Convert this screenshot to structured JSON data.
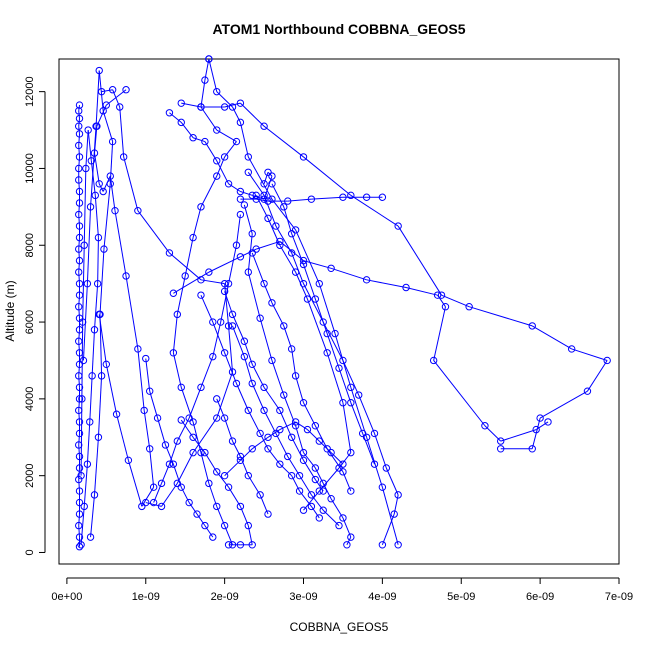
{
  "chart_data": {
    "type": "line",
    "title": "ATOM1 Northbound COBBNA_GEOS5",
    "xlabel": "COBBNA_GEOS5",
    "ylabel": "Altitude (m)",
    "xlim": [
      -1e-10,
      7e-09
    ],
    "ylim": [
      -300,
      12850
    ],
    "x_ticks": [
      0,
      1e-09,
      2e-09,
      3e-09,
      4e-09,
      5e-09,
      6e-09,
      7e-09
    ],
    "x_tick_labels": [
      "0e+00",
      "1e-09",
      "2e-09",
      "3e-09",
      "4e-09",
      "5e-09",
      "6e-09",
      "7e-09"
    ],
    "y_ticks": [
      0,
      2000,
      4000,
      6000,
      8000,
      10000,
      12000
    ],
    "y_tick_labels": [
      "0",
      "2000",
      "4000",
      "6000",
      "8000",
      "10000",
      "12000"
    ],
    "grid": false,
    "legend": "none",
    "marker": "open-circle",
    "color": "#0000ff",
    "series": [
      {
        "x": [
          1.6e-10,
          1.6e-10,
          1.5e-10,
          1.6e-10,
          1.6e-10,
          1.6e-10,
          1.5e-10,
          1.6e-10,
          1.6e-10,
          1.5e-10,
          1.6e-10,
          1.6e-10,
          1.5e-10,
          1.6e-10,
          1.6e-10,
          1.5e-10,
          1.6e-10,
          1.6e-10,
          1.5e-10,
          1.6e-10,
          1.6e-10,
          1.5e-10,
          1.6e-10,
          1.6e-10,
          1.5e-10,
          1.6e-10,
          1.5e-10,
          1.6e-10,
          1.6e-10,
          1.5e-10,
          1.6e-10,
          1.6e-10,
          1.5e-10,
          1.5e-10,
          1.6e-10,
          1.5e-10,
          1.6e-10,
          1.5e-10,
          1.6e-10,
          1.5e-10,
          1.6e-10
        ],
        "y": [
          150,
          400,
          700,
          1000,
          1300,
          1600,
          1900,
          2200,
          2500,
          2800,
          3100,
          3400,
          3700,
          4000,
          4300,
          4600,
          4900,
          5200,
          5500,
          5800,
          6100,
          6400,
          6700,
          7000,
          7300,
          7600,
          7900,
          8200,
          8500,
          8800,
          9100,
          9400,
          9700,
          10000,
          10300,
          10600,
          10900,
          11100,
          11300,
          11500,
          11650
        ]
      },
      {
        "x": [
          1.8e-10,
          2.2e-10,
          2.6e-10,
          2.9e-10,
          3.2e-10,
          3.5e-10,
          3.9e-10,
          4e-10,
          3.6e-10,
          3.1e-10,
          2.7e-10,
          2.4e-10,
          2.2e-10,
          2e-10,
          1.9e-10,
          1.8e-10
        ],
        "y": [
          200,
          1200,
          2300,
          3400,
          4600,
          5800,
          7000,
          8200,
          9300,
          10200,
          11000,
          10000,
          8000,
          6000,
          4000,
          2000
        ]
      },
      {
        "x": [
          3e-10,
          3.5e-10,
          4e-10,
          4.4e-10,
          4.2e-10,
          4.7e-10,
          5.5e-10,
          5.8e-10,
          4.6e-10,
          4.1e-10,
          3.7e-10,
          3e-10,
          2.6e-10,
          2.1e-10
        ],
        "y": [
          400,
          1500,
          3000,
          4600,
          6200,
          7900,
          9600,
          10700,
          11500,
          12550,
          11100,
          9000,
          7000,
          5000
        ]
      },
      {
        "x": [
          7.5e-10,
          5e-10,
          3.8e-10,
          3.5e-10,
          4.1e-10,
          4.6e-10,
          5.5e-10,
          6.1e-10,
          7.5e-10,
          9e-10,
          9.8e-10,
          1.05e-09,
          1.1e-09,
          9.5e-10,
          7.8e-10,
          6.3e-10,
          5e-10,
          4.1e-10
        ],
        "y": [
          12050,
          11650,
          11100,
          10400,
          9600,
          9400,
          9800,
          8900,
          7200,
          5300,
          3700,
          2700,
          1700,
          1200,
          2400,
          3600,
          4900,
          6200
        ]
      },
      {
        "x": [
          4.4e-10,
          5.8e-10,
          6.7e-10,
          7.2e-10,
          9e-10,
          1.3e-09,
          1.7e-09,
          2e-09,
          2.05e-09,
          2.1e-09,
          1.9e-09,
          1.6e-09,
          1.4e-09,
          1.2e-09,
          1e-09
        ],
        "y": [
          12000,
          12050,
          11600,
          10300,
          8900,
          7800,
          7100,
          7000,
          5900,
          4700,
          3500,
          2600,
          1800,
          1200,
          1300
        ]
      },
      {
        "x": [
          1.8e-09,
          1.9e-09,
          2.1e-09,
          2.2e-09,
          2.3e-09,
          2.6e-09,
          2.9e-09,
          3.2e-09,
          3.4e-09,
          3.6e-09,
          3.8e-09,
          4e-09,
          4.2e-09
        ],
        "y": [
          12850,
          12000,
          11600,
          11200,
          10300,
          9200,
          8400,
          7000,
          5700,
          4300,
          3000,
          1700,
          200
        ]
      },
      {
        "x": [
          1.8e-09,
          1.75e-09,
          1.7e-09,
          1.9e-09,
          2.15e-09,
          2e-09,
          1.9e-09,
          1.7e-09,
          1.6e-09,
          1.5e-09,
          1.4e-09,
          1.35e-09,
          1.45e-09,
          1.6e-09,
          1.7e-09,
          1.8e-09,
          1.9e-09,
          2e-09,
          2.1e-09
        ],
        "y": [
          12850,
          12300,
          11600,
          11000,
          10700,
          10300,
          9800,
          9000,
          8200,
          7200,
          6200,
          5200,
          4300,
          3400,
          2600,
          1800,
          1200,
          700,
          200
        ]
      },
      {
        "x": [
          1.3e-09,
          1.45e-09,
          1.6e-09,
          1.75e-09,
          1.9e-09,
          2.05e-09,
          2.2e-09,
          2.35e-09,
          2.5e-09,
          2.6e-09,
          2.55e-09,
          2.5e-09
        ],
        "y": [
          11450,
          11200,
          10800,
          10700,
          10200,
          9600,
          9400,
          9300,
          9200,
          9800,
          9900,
          9600
        ]
      },
      {
        "x": [
          1.45e-09,
          1.7e-09,
          2e-09,
          2.2e-09,
          2.5e-09,
          3e-09,
          3.6e-09,
          4.2e-09,
          4.75e-09,
          5.1e-09,
          5.9e-09,
          6.4e-09,
          6.85e-09,
          6.6e-09,
          6e-09,
          5.9e-09,
          5.5e-09
        ],
        "y": [
          11700,
          11600,
          11600,
          11700,
          11100,
          10300,
          9300,
          8500,
          6700,
          6400,
          5900,
          5300,
          5000,
          4200,
          3500,
          2700,
          2700
        ]
      },
      {
        "x": [
          1.35e-09,
          1.8e-09,
          2.2e-09,
          2.4e-09,
          2.7e-09,
          3e-09,
          3.35e-09,
          3.8e-09,
          4.3e-09,
          4.7e-09,
          4.8e-09,
          4.65e-09,
          5.3e-09,
          5.5e-09,
          5.95e-09,
          6.1e-09
        ],
        "y": [
          6750,
          7300,
          7700,
          7900,
          8100,
          7600,
          7400,
          7100,
          6900,
          6700,
          6400,
          5000,
          3300,
          2900,
          3200,
          3400
        ]
      },
      {
        "x": [
          2.2e-09,
          2.4e-09,
          2.55e-09,
          2.8e-09,
          3.1e-09,
          3.5e-09,
          3.8e-09,
          4e-09
        ],
        "y": [
          9200,
          9200,
          9150,
          9150,
          9200,
          9250,
          9250,
          9250
        ]
      },
      {
        "x": [
          2.3e-09,
          2.5e-09,
          2.65e-09,
          2.85e-09,
          3e-09,
          3.25e-09,
          3.5e-09,
          3.7e-09,
          3.9e-09,
          4.05e-09,
          4.2e-09,
          4.15e-09,
          4e-09
        ],
        "y": [
          9900,
          9300,
          8500,
          7800,
          7000,
          6000,
          5000,
          4100,
          3100,
          2200,
          1500,
          1000,
          200
        ]
      },
      {
        "x": [
          2.4e-09,
          2.55e-09,
          2.7e-09,
          2.9e-09,
          3.05e-09,
          3.3e-09,
          3.5e-09,
          3.6e-09,
          3.45e-09,
          3.2e-09,
          3e-09
        ],
        "y": [
          9300,
          8700,
          8000,
          7300,
          6600,
          5200,
          3900,
          2600,
          2200,
          1600,
          1100
        ]
      },
      {
        "x": [
          2.25e-09,
          2.35e-09,
          2.3e-09,
          2.45e-09,
          2.6e-09,
          2.75e-09,
          2.9e-09,
          3e-09,
          3.15e-09,
          3.25e-09,
          3.35e-09,
          3.5e-09,
          3.6e-09,
          3.55e-09
        ],
        "y": [
          9050,
          8300,
          7300,
          6100,
          5000,
          4100,
          3300,
          2600,
          2200,
          1800,
          1400,
          900,
          400,
          200
        ]
      },
      {
        "x": [
          2.2e-09,
          2.15e-09,
          2.05e-09,
          1.95e-09,
          1.85e-09,
          1.7e-09,
          1.55e-09,
          1.4e-09,
          1.3e-09,
          1.2e-09,
          1.1e-09
        ],
        "y": [
          8800,
          8000,
          7000,
          6000,
          5100,
          4300,
          3500,
          2900,
          2300,
          1800,
          1300
        ]
      },
      {
        "x": [
          1.45e-09,
          1.6e-09,
          1.75e-09,
          1.9e-09,
          2.05e-09,
          2.2e-09,
          2.3e-09,
          2.35e-09,
          2.2e-09,
          2.05e-09
        ],
        "y": [
          3450,
          3000,
          2600,
          2100,
          1700,
          1200,
          700,
          200,
          200,
          200
        ]
      },
      {
        "x": [
          1.7e-09,
          1.85e-09,
          2e-09,
          2.15e-09,
          2.3e-09,
          2.45e-09,
          2.55e-09,
          2.7e-09,
          2.85e-09,
          2.95e-09,
          3.1e-09,
          3.2e-09
        ],
        "y": [
          6700,
          6000,
          5200,
          4400,
          3700,
          3100,
          2700,
          2300,
          2000,
          1600,
          1200,
          900
        ]
      },
      {
        "x": [
          2.1e-09,
          2.25e-09,
          2.35e-09,
          2.5e-09,
          2.65e-09,
          2.8e-09,
          2.95e-09,
          3.1e-09,
          3.25e-09,
          3.45e-09
        ],
        "y": [
          5900,
          5100,
          4400,
          3700,
          3100,
          2500,
          2000,
          1500,
          1100,
          700
        ]
      },
      {
        "x": [
          2.35e-09,
          2.5e-09,
          2.6e-09,
          2.75e-09,
          2.85e-09,
          2.9e-09,
          3e-09,
          3.15e-09,
          3.3e-09,
          3.5e-09,
          3.6e-09
        ],
        "y": [
          7800,
          7000,
          6500,
          5900,
          5300,
          4600,
          3900,
          3300,
          2700,
          2100,
          1600
        ]
      },
      {
        "x": [
          2.6e-09,
          2.75e-09,
          2.85e-09,
          3e-09,
          3.15e-09,
          3.3e-09,
          3.45e-09,
          3.6e-09,
          3.75e-09,
          3.9e-09
        ],
        "y": [
          9600,
          9000,
          8300,
          7500,
          6600,
          5700,
          4800,
          3900,
          3100,
          2300
        ]
      },
      {
        "x": [
          1e-09,
          1.05e-09,
          1.15e-09,
          1.25e-09,
          1.35e-09,
          1.45e-09,
          1.55e-09,
          1.65e-09,
          1.75e-09,
          1.85e-09
        ],
        "y": [
          5050,
          4200,
          3500,
          2800,
          2300,
          1700,
          1300,
          1000,
          700,
          400
        ]
      },
      {
        "x": [
          1.9e-09,
          2e-09,
          2.1e-09,
          2.2e-09,
          2.3e-09,
          2.45e-09,
          2.55e-09
        ],
        "y": [
          4000,
          3500,
          2900,
          2500,
          2000,
          1500,
          1000
        ]
      },
      {
        "x": [
          2e-09,
          2.1e-09,
          2.25e-09,
          2.35e-09,
          2.5e-09,
          2.7e-09,
          2.85e-09,
          3e-09,
          3.15e-09,
          3.25e-09
        ],
        "y": [
          6800,
          6200,
          5500,
          4900,
          4300,
          3700,
          3000,
          2400,
          1900,
          1600
        ]
      },
      {
        "x": [
          2e-09,
          2.2e-09,
          2.35e-09,
          2.55e-09,
          2.7e-09,
          2.9e-09,
          3.05e-09,
          3.2e-09,
          3.35e-09,
          3.5e-09
        ],
        "y": [
          2000,
          2400,
          2700,
          3000,
          3200,
          3400,
          3200,
          2900,
          2600,
          2300
        ]
      }
    ]
  }
}
